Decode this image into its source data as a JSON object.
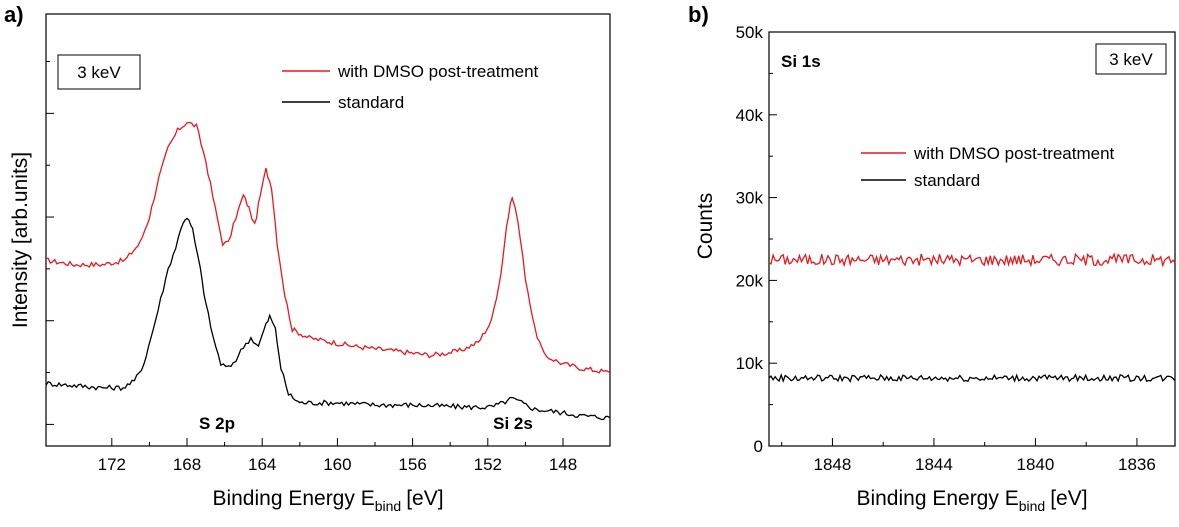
{
  "chart_data": [
    {
      "panel_label": "a)",
      "type": "line",
      "xlabel": "Binding Energy E",
      "xlabel_sub": "bind",
      "xlabel_unit": "[eV]",
      "ylabel": "Intensity [arb.units]",
      "xlim": [
        175.5,
        145.5
      ],
      "x_reversed": true,
      "ylim": [
        0,
        1
      ],
      "x_ticks": [
        172,
        168,
        164,
        160,
        156,
        152,
        148
      ],
      "y_tick_labels_shown": false,
      "box_label": "3 keV",
      "legend_position": "top-right",
      "annotations": [
        "S 2p",
        "Si 2s"
      ],
      "series": [
        {
          "name": "with DMSO post-treatment",
          "color": "#e8191f",
          "points": [
            [
              175.5,
              0.43
            ],
            [
              174,
              0.42
            ],
            [
              172.5,
              0.42
            ],
            [
              171.3,
              0.43
            ],
            [
              170.5,
              0.47
            ],
            [
              170,
              0.53
            ],
            [
              169.5,
              0.62
            ],
            [
              169,
              0.69
            ],
            [
              168.5,
              0.73
            ],
            [
              168,
              0.75
            ],
            [
              167.5,
              0.74
            ],
            [
              167,
              0.66
            ],
            [
              166.5,
              0.55
            ],
            [
              166.1,
              0.47
            ],
            [
              165.8,
              0.47
            ],
            [
              165.4,
              0.53
            ],
            [
              165,
              0.58
            ],
            [
              164.7,
              0.55
            ],
            [
              164.4,
              0.51
            ],
            [
              164.1,
              0.58
            ],
            [
              163.8,
              0.64
            ],
            [
              163.5,
              0.6
            ],
            [
              163.2,
              0.47
            ],
            [
              162.8,
              0.35
            ],
            [
              162.4,
              0.27
            ],
            [
              161.5,
              0.25
            ],
            [
              159,
              0.23
            ],
            [
              157,
              0.22
            ],
            [
              155,
              0.21
            ],
            [
              153.5,
              0.22
            ],
            [
              152.5,
              0.24
            ],
            [
              151.8,
              0.29
            ],
            [
              151.3,
              0.4
            ],
            [
              151,
              0.51
            ],
            [
              150.7,
              0.58
            ],
            [
              150.4,
              0.52
            ],
            [
              150,
              0.39
            ],
            [
              149.5,
              0.27
            ],
            [
              149,
              0.21
            ],
            [
              148,
              0.19
            ],
            [
              147,
              0.18
            ],
            [
              145.5,
              0.17
            ]
          ]
        },
        {
          "name": "standard",
          "color": "#000000",
          "points": [
            [
              175.5,
              0.145
            ],
            [
              174,
              0.14
            ],
            [
              172.5,
              0.135
            ],
            [
              171.4,
              0.135
            ],
            [
              170.8,
              0.15
            ],
            [
              170.3,
              0.19
            ],
            [
              169.8,
              0.27
            ],
            [
              169.4,
              0.34
            ],
            [
              169,
              0.41
            ],
            [
              168.6,
              0.46
            ],
            [
              168.2,
              0.52
            ],
            [
              168,
              0.53
            ],
            [
              167.7,
              0.5
            ],
            [
              167.3,
              0.41
            ],
            [
              167,
              0.33
            ],
            [
              166.6,
              0.25
            ],
            [
              166.2,
              0.19
            ],
            [
              165.8,
              0.18
            ],
            [
              165.4,
              0.2
            ],
            [
              165,
              0.23
            ],
            [
              164.6,
              0.25
            ],
            [
              164.2,
              0.23
            ],
            [
              163.9,
              0.27
            ],
            [
              163.6,
              0.3
            ],
            [
              163.3,
              0.27
            ],
            [
              163,
              0.18
            ],
            [
              162.6,
              0.12
            ],
            [
              162,
              0.1
            ],
            [
              160,
              0.1
            ],
            [
              158,
              0.095
            ],
            [
              156,
              0.095
            ],
            [
              153,
              0.09
            ],
            [
              151.8,
              0.09
            ],
            [
              151.2,
              0.1
            ],
            [
              150.7,
              0.11
            ],
            [
              150.2,
              0.1
            ],
            [
              149.5,
              0.085
            ],
            [
              148.5,
              0.08
            ],
            [
              147,
              0.07
            ],
            [
              145.5,
              0.065
            ]
          ]
        }
      ]
    },
    {
      "panel_label": "b)",
      "type": "line",
      "xlabel": "Binding Energy E",
      "xlabel_sub": "bind",
      "xlabel_unit": "[eV]",
      "ylabel": "Counts",
      "xlim": [
        1850.5,
        1834.5
      ],
      "x_reversed": true,
      "ylim": [
        0,
        50000
      ],
      "x_ticks": [
        1848,
        1844,
        1840,
        1836
      ],
      "y_ticks": [
        0,
        10000,
        20000,
        30000,
        40000,
        50000
      ],
      "y_tick_labels": [
        "0",
        "10k",
        "20k",
        "30k",
        "40k",
        "50k"
      ],
      "box_label": "3 keV",
      "corner_label": "Si 1s",
      "legend_position": "center-right",
      "series": [
        {
          "name": "with DMSO post-treatment",
          "color": "#e8191f",
          "mean": 22500,
          "noise": 700,
          "range": [
            20500,
            24500
          ]
        },
        {
          "name": "standard",
          "color": "#000000",
          "mean": 8200,
          "noise": 400,
          "range": [
            7200,
            9200
          ]
        }
      ]
    }
  ]
}
